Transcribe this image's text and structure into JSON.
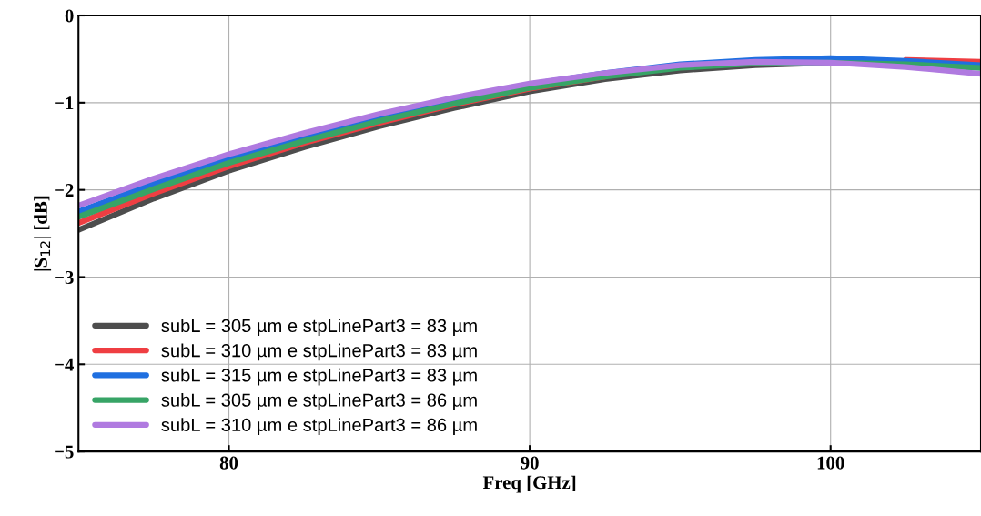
{
  "chart_data": {
    "type": "line",
    "xlabel": "Freq [GHz]",
    "ylabel": "|S$_{12}$| [dB]",
    "x": [
      75,
      77.5,
      80,
      82.5,
      85,
      87.5,
      90,
      92.5,
      95,
      97.5,
      100,
      102.5,
      105
    ],
    "xlim": [
      75,
      105
    ],
    "xticks": [
      80,
      90,
      100
    ],
    "ylim": [
      -5,
      0
    ],
    "yticks": [
      -5,
      -4,
      -3,
      -2,
      -1,
      0
    ],
    "grid": true,
    "legend": "bottom left",
    "marker": "none",
    "line_style": "solid",
    "series": [
      {
        "name": "subL = 305 µm e stpLinePart3 = 83 µm",
        "color": "#4d4d4d",
        "values": [
          -2.46,
          -2.1,
          -1.78,
          -1.51,
          -1.27,
          -1.06,
          -0.87,
          -0.73,
          -0.63,
          -0.57,
          -0.54,
          -0.55,
          -0.58
        ]
      },
      {
        "name": "subL = 310 µm e stpLinePart3 = 83 µm",
        "color": "#ef3e42",
        "values": [
          -2.38,
          -2.04,
          -1.73,
          -1.46,
          -1.23,
          -1.02,
          -0.84,
          -0.7,
          null,
          null,
          null,
          -0.51,
          -0.53
        ]
      },
      {
        "name": "subL = 315 µm e stpLinePart3 = 83 µm",
        "color": "#1f6fe0",
        "values": [
          -2.25,
          -1.93,
          -1.64,
          -1.39,
          -1.16,
          -0.96,
          -0.79,
          -0.66,
          -0.56,
          -0.51,
          -0.49,
          -0.52,
          -0.57
        ]
      },
      {
        "name": "subL = 305 µm e stpLinePart3 = 86 µm",
        "color": "#37a466",
        "values": [
          -2.31,
          -1.99,
          -1.69,
          -1.44,
          -1.21,
          -1.01,
          -0.83,
          -0.7,
          -0.6,
          -0.55,
          -0.54,
          -0.56,
          -0.6
        ]
      },
      {
        "name": "subL = 310 µm e stpLinePart3 = 86 µm",
        "color": "#b07ae0",
        "values": [
          -2.18,
          -1.87,
          -1.59,
          -1.35,
          -1.13,
          -0.94,
          -0.78,
          -0.66,
          -0.57,
          -0.53,
          -0.54,
          -0.59,
          -0.67
        ]
      }
    ]
  }
}
